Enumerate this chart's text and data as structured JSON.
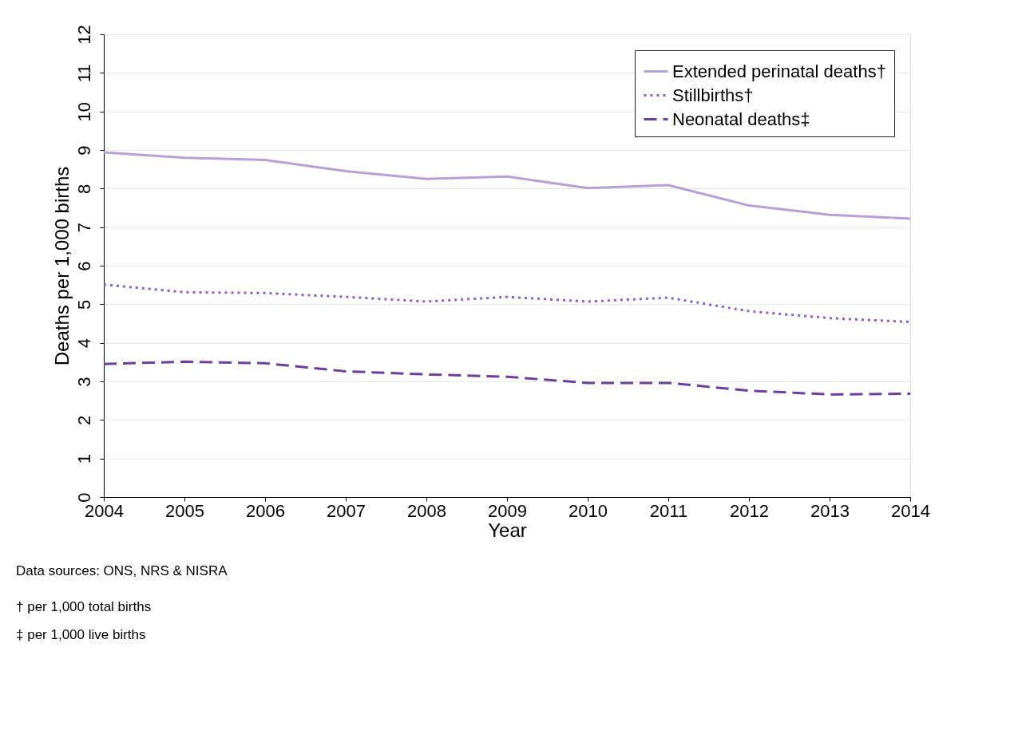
{
  "chart_data": {
    "type": "line",
    "xlabel": "Year",
    "ylabel": "Deaths per 1,000 births",
    "x": [
      2004,
      2005,
      2006,
      2007,
      2008,
      2009,
      2010,
      2011,
      2012,
      2013,
      2014
    ],
    "xlim": [
      2004,
      2014
    ],
    "xticks": [
      2004,
      2005,
      2006,
      2007,
      2008,
      2009,
      2010,
      2011,
      2012,
      2013,
      2014
    ],
    "ylim": [
      0,
      12
    ],
    "yticks": [
      0,
      1,
      2,
      3,
      4,
      5,
      6,
      7,
      8,
      9,
      10,
      11,
      12
    ],
    "grid": "y",
    "legend": "top right",
    "marker": "none",
    "series": [
      {
        "name": "Extended perinatal deaths†",
        "color": "#b7a0d8",
        "line_style": "solid",
        "values": [
          8.94,
          8.8,
          8.74,
          8.45,
          8.25,
          8.31,
          8.01,
          8.09,
          7.56,
          7.32,
          7.22
        ]
      },
      {
        "name": "Stillbirths†",
        "color": "#8c5fc4",
        "line_style": "dotted",
        "values": [
          5.51,
          5.31,
          5.29,
          5.19,
          5.07,
          5.19,
          5.07,
          5.17,
          4.82,
          4.64,
          4.54
        ]
      },
      {
        "name": "Neonatal deaths‡",
        "color": "#6b3fa0",
        "line_style": "dashed",
        "values": [
          3.45,
          3.51,
          3.47,
          3.26,
          3.18,
          3.12,
          2.96,
          2.96,
          2.76,
          2.66,
          2.68
        ]
      }
    ],
    "annotations": [
      "Data sources: ONS, NRS & NISRA",
      "† per 1,000 total births",
      "‡ per 1,000 live births"
    ]
  }
}
